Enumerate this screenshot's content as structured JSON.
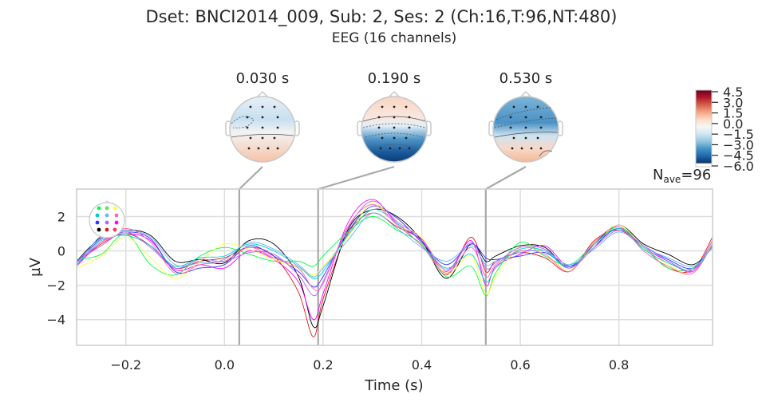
{
  "figure": {
    "title": "Dset: BNCI2014_009, Sub: 2, Ses: 2 (Ch:16,T:96,NT:480)",
    "subtitle": "EEG (16 channels)"
  },
  "topomaps": [
    {
      "time_label": "0.030 s",
      "time": 0.03
    },
    {
      "time_label": "0.190 s",
      "time": 0.19
    },
    {
      "time_label": "0.530 s",
      "time": 0.53
    }
  ],
  "colorbar": {
    "ticks": [
      "4.5",
      "3.0",
      "1.5",
      "0.0",
      "−1.5",
      "−3.0",
      "−4.5",
      "−6.0"
    ],
    "values": [
      4.5,
      3.0,
      1.5,
      0.0,
      -1.5,
      -3.0,
      -4.5,
      -6.0
    ],
    "colors": [
      "#67001f",
      "#b2182b",
      "#d6604d",
      "#f4a582",
      "#fddbc7",
      "#f7f7f7",
      "#d1e5f0",
      "#92c5de",
      "#4393c3",
      "#2166ac",
      "#053061"
    ]
  },
  "nave": {
    "base": "N",
    "sub": "ave",
    "value": "=96"
  },
  "chart_data": {
    "type": "line",
    "xlabel": "Time (s)",
    "ylabel": "µV",
    "xlim": [
      -0.3,
      0.99
    ],
    "ylim": [
      -5.5,
      3.6
    ],
    "grid": true,
    "xticks": [
      -0.2,
      0.0,
      0.2,
      0.4,
      0.6,
      0.8
    ],
    "xtick_labels": [
      "−0.2",
      "0.0",
      "0.2",
      "0.4",
      "0.6",
      "0.8"
    ],
    "yticks": [
      2,
      0,
      -2,
      -4
    ],
    "ytick_labels": [
      "2",
      "0",
      "−2",
      "−4"
    ],
    "vlines": [
      0.03,
      0.19,
      0.53
    ],
    "x": [
      -0.3,
      -0.25,
      -0.2,
      -0.15,
      -0.1,
      -0.05,
      0.0,
      0.05,
      0.1,
      0.15,
      0.18,
      0.2,
      0.25,
      0.3,
      0.35,
      0.4,
      0.45,
      0.5,
      0.53,
      0.55,
      0.6,
      0.65,
      0.7,
      0.75,
      0.8,
      0.85,
      0.9,
      0.95,
      0.99
    ],
    "series": [
      {
        "color": "#e41a1c",
        "values": [
          -0.8,
          0.4,
          1.0,
          0.3,
          -1.0,
          -0.6,
          -0.4,
          0.2,
          -0.3,
          -2.4,
          -5.0,
          -2.8,
          1.0,
          2.2,
          1.4,
          0.6,
          -1.4,
          0.8,
          -1.2,
          -0.6,
          -0.1,
          -0.4,
          -1.2,
          0.6,
          1.2,
          0.2,
          -1.0,
          -1.1,
          0.8
        ]
      },
      {
        "color": "#000000",
        "values": [
          -0.6,
          0.8,
          1.2,
          0.9,
          -0.6,
          -0.5,
          -0.7,
          0.6,
          0.4,
          -1.5,
          -4.4,
          -3.2,
          1.2,
          2.4,
          2.0,
          0.6,
          -1.6,
          0.4,
          -0.6,
          -0.3,
          0.3,
          0.2,
          -1.0,
          0.4,
          1.5,
          0.4,
          -0.2,
          -0.8,
          0.2
        ]
      },
      {
        "color": "#ff00ff",
        "values": [
          -0.9,
          0.5,
          1.0,
          0.6,
          -1.1,
          -0.8,
          -1.0,
          0.0,
          -0.5,
          -1.8,
          -4.0,
          -2.5,
          1.6,
          3.0,
          1.6,
          0.6,
          -1.2,
          0.6,
          -2.0,
          -0.9,
          -0.2,
          0.3,
          -0.9,
          0.2,
          1.5,
          0.2,
          -0.6,
          -1.2,
          0.5
        ]
      },
      {
        "color": "#3333ff",
        "values": [
          -0.7,
          0.7,
          1.1,
          0.7,
          -1.2,
          -1.0,
          -0.8,
          0.3,
          -0.3,
          -1.2,
          -2.1,
          -1.5,
          1.1,
          2.6,
          1.9,
          0.5,
          -0.8,
          0.4,
          -0.4,
          -0.5,
          -0.3,
          -0.1,
          -0.9,
          0.3,
          1.3,
          0.3,
          -0.5,
          -1.0,
          0.4
        ]
      },
      {
        "color": "#00ff40",
        "values": [
          -0.5,
          -0.2,
          1.0,
          -0.8,
          -1.4,
          -0.3,
          0.2,
          -0.2,
          -0.6,
          -0.6,
          -0.9,
          -0.3,
          1.1,
          2.0,
          1.2,
          0.4,
          -1.5,
          -0.9,
          -2.6,
          -1.3,
          0.5,
          -0.3,
          -0.8,
          0.4,
          1.4,
          0.2,
          -1.0,
          -1.0,
          0.3
        ]
      },
      {
        "color": "#ffff33",
        "values": [
          -1.0,
          -0.3,
          0.8,
          -0.4,
          -1.6,
          -0.6,
          0.4,
          0.1,
          -0.5,
          -1.0,
          -1.4,
          -0.9,
          0.8,
          2.8,
          1.5,
          0.8,
          -1.3,
          -0.3,
          -2.5,
          -1.5,
          0.2,
          -0.2,
          -1.1,
          0.3,
          1.5,
          0.2,
          -0.8,
          -1.3,
          0.5
        ]
      },
      {
        "color": "#00cccc",
        "values": [
          -0.8,
          0.6,
          0.9,
          0.3,
          -0.9,
          -0.4,
          -0.3,
          0.4,
          0.0,
          -0.9,
          -1.6,
          -1.2,
          0.9,
          2.4,
          1.6,
          0.3,
          -1.0,
          -0.2,
          -1.8,
          -1.0,
          0.1,
          0.0,
          -1.0,
          0.4,
          1.3,
          0.1,
          -0.7,
          -1.1,
          0.3
        ]
      },
      {
        "color": "#b266ff",
        "values": [
          -0.6,
          0.3,
          1.1,
          0.2,
          -1.0,
          -0.5,
          -0.6,
          -0.1,
          -0.2,
          -1.4,
          -2.6,
          -1.8,
          1.3,
          2.9,
          1.7,
          0.7,
          -1.1,
          0.5,
          -1.0,
          -0.7,
          0.2,
          0.1,
          -1.0,
          0.2,
          1.2,
          0.3,
          -0.6,
          -1.1,
          0.6
        ]
      },
      {
        "color": "#ff66b2",
        "values": [
          -0.7,
          0.5,
          1.3,
          0.5,
          -1.3,
          -0.8,
          -0.6,
          0.2,
          -0.4,
          -1.0,
          -2.2,
          -1.9,
          1.4,
          2.7,
          1.5,
          0.3,
          -1.3,
          0.2,
          -1.5,
          -0.8,
          0.0,
          -0.2,
          -1.2,
          0.5,
          1.4,
          0.0,
          -0.9,
          -1.3,
          0.4
        ]
      },
      {
        "color": "#66b2ff",
        "values": [
          -0.9,
          0.9,
          1.2,
          0.8,
          -0.8,
          -0.7,
          -0.5,
          0.5,
          0.1,
          -0.8,
          -1.5,
          -1.0,
          0.6,
          2.2,
          1.3,
          0.2,
          -0.6,
          0.3,
          -0.8,
          -0.6,
          -0.1,
          0.0,
          -0.8,
          0.1,
          1.1,
          0.2,
          -0.4,
          -0.9,
          0.2
        ]
      }
    ]
  }
}
